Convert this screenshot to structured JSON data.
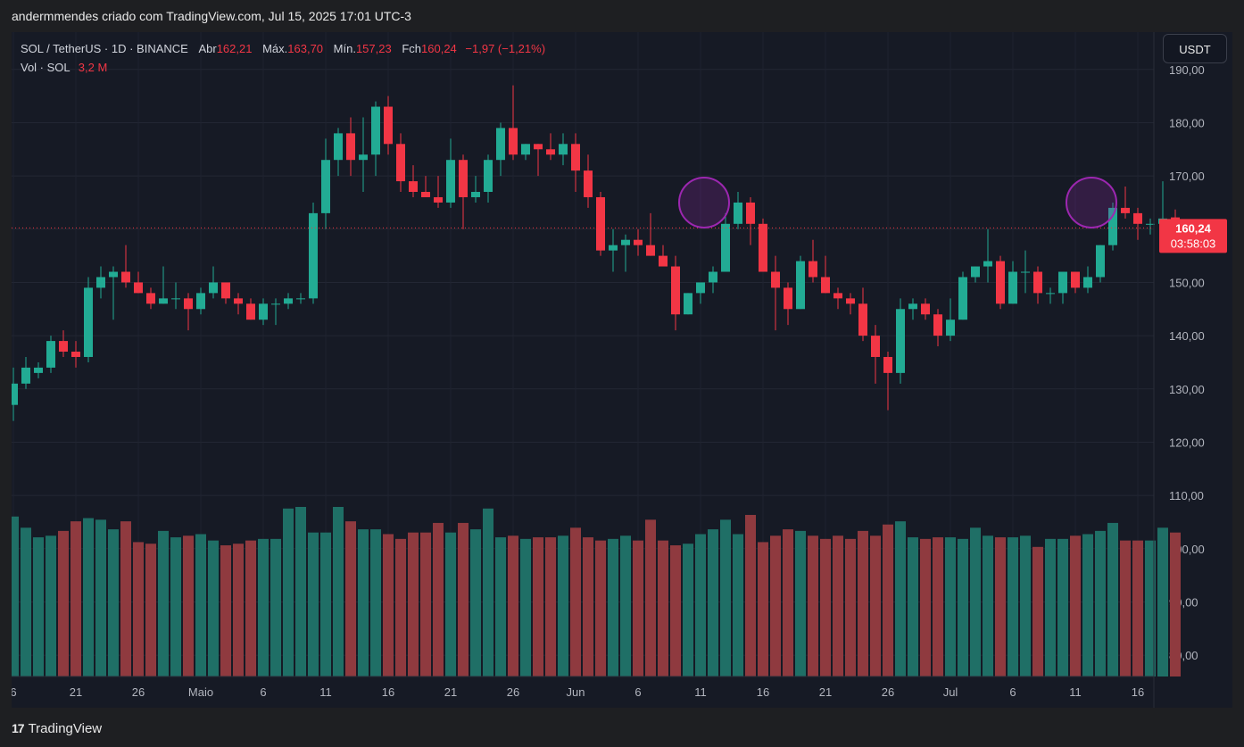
{
  "header": {
    "caption": "andermmendes criado com TradingView.com, Jul 15, 2025 17:01 UTC-3"
  },
  "legend": {
    "symbol": "SOL / TetherUS · 1D · BINANCE",
    "open_label": "Abr",
    "open_value": "162,21",
    "high_label": "Máx.",
    "high_value": "163,70",
    "low_label": "Mín.",
    "low_value": "157,23",
    "close_label": "Fch",
    "close_value": "160,24",
    "change": "−1,97 (−1,21%)",
    "volume_label": "Vol · SOL",
    "volume_value": "3,2 M"
  },
  "currency_button": "USDT",
  "price_tag": {
    "price": "160,24",
    "countdown": "03:58:03"
  },
  "footer": {
    "brand": "TradingView",
    "logo_glyph": "17"
  },
  "colors": {
    "up": "#22ab94",
    "down": "#f23645",
    "volume_up": "#1f6f66",
    "volume_down": "#8f3a3f",
    "background": "#161a25",
    "highlight": "#9c27b0"
  },
  "chart_data": {
    "type": "candlestick",
    "title": "SOL / TetherUS · 1D · BINANCE",
    "y_ticks": [
      "190,00",
      "180,00",
      "170,00",
      "160,00",
      "150,00",
      "140,00",
      "130,00",
      "120,00",
      "110,00",
      "100,00",
      "90,00",
      "80,00"
    ],
    "ylim": [
      76,
      197
    ],
    "x_tick_labels": [
      "6",
      "21",
      "26",
      "Maio",
      "6",
      "11",
      "16",
      "21",
      "26",
      "Jun",
      "6",
      "11",
      "16",
      "21",
      "26",
      "Jul",
      "6",
      "11",
      "16"
    ],
    "current_price": 160.24,
    "highlight_circles": [
      {
        "date": "Jun 10",
        "price": 165
      },
      {
        "date": "Jul 11",
        "price": 165
      }
    ],
    "candles": [
      {
        "o": 127,
        "h": 134,
        "l": 124,
        "c": 131
      },
      {
        "o": 131,
        "h": 136,
        "l": 130,
        "c": 134
      },
      {
        "o": 133,
        "h": 135,
        "l": 132,
        "c": 134
      },
      {
        "o": 134,
        "h": 140,
        "l": 133,
        "c": 139
      },
      {
        "o": 139,
        "h": 141,
        "l": 136,
        "c": 137
      },
      {
        "o": 137,
        "h": 139,
        "l": 134,
        "c": 136
      },
      {
        "o": 136,
        "h": 151,
        "l": 135,
        "c": 149
      },
      {
        "o": 149,
        "h": 153,
        "l": 147,
        "c": 151
      },
      {
        "o": 151,
        "h": 153,
        "l": 143,
        "c": 152
      },
      {
        "o": 152,
        "h": 157,
        "l": 149,
        "c": 150
      },
      {
        "o": 150,
        "h": 152,
        "l": 148,
        "c": 148
      },
      {
        "o": 148,
        "h": 149,
        "l": 145,
        "c": 146
      },
      {
        "o": 146,
        "h": 153,
        "l": 146,
        "c": 147
      },
      {
        "o": 147,
        "h": 150,
        "l": 145,
        "c": 147
      },
      {
        "o": 147,
        "h": 148,
        "l": 141,
        "c": 145
      },
      {
        "o": 145,
        "h": 149,
        "l": 144,
        "c": 148
      },
      {
        "o": 148,
        "h": 153,
        "l": 147,
        "c": 150
      },
      {
        "o": 150,
        "h": 150,
        "l": 146,
        "c": 147
      },
      {
        "o": 147,
        "h": 148,
        "l": 144,
        "c": 146
      },
      {
        "o": 146,
        "h": 147,
        "l": 143,
        "c": 143
      },
      {
        "o": 143,
        "h": 147,
        "l": 142,
        "c": 146
      },
      {
        "o": 146,
        "h": 147,
        "l": 142,
        "c": 146
      },
      {
        "o": 146,
        "h": 148,
        "l": 145,
        "c": 147
      },
      {
        "o": 147,
        "h": 148,
        "l": 146,
        "c": 147
      },
      {
        "o": 147,
        "h": 165,
        "l": 146,
        "c": 163
      },
      {
        "o": 163,
        "h": 177,
        "l": 160,
        "c": 173
      },
      {
        "o": 173,
        "h": 179,
        "l": 170,
        "c": 178
      },
      {
        "o": 178,
        "h": 181,
        "l": 170,
        "c": 173
      },
      {
        "o": 173,
        "h": 181,
        "l": 167,
        "c": 174
      },
      {
        "o": 174,
        "h": 184,
        "l": 170,
        "c": 183
      },
      {
        "o": 183,
        "h": 185,
        "l": 174,
        "c": 176
      },
      {
        "o": 176,
        "h": 178,
        "l": 167,
        "c": 169
      },
      {
        "o": 169,
        "h": 172,
        "l": 166,
        "c": 167
      },
      {
        "o": 167,
        "h": 170,
        "l": 166,
        "c": 166
      },
      {
        "o": 166,
        "h": 170,
        "l": 164,
        "c": 165
      },
      {
        "o": 165,
        "h": 177,
        "l": 164,
        "c": 173
      },
      {
        "o": 173,
        "h": 174,
        "l": 160,
        "c": 166
      },
      {
        "o": 166,
        "h": 170,
        "l": 165,
        "c": 167
      },
      {
        "o": 167,
        "h": 174,
        "l": 165,
        "c": 173
      },
      {
        "o": 173,
        "h": 180,
        "l": 170,
        "c": 179
      },
      {
        "o": 179,
        "h": 187,
        "l": 173,
        "c": 174
      },
      {
        "o": 174,
        "h": 176,
        "l": 173,
        "c": 176
      },
      {
        "o": 176,
        "h": 176,
        "l": 170,
        "c": 175
      },
      {
        "o": 175,
        "h": 178,
        "l": 173,
        "c": 174
      },
      {
        "o": 174,
        "h": 178,
        "l": 172,
        "c": 176
      },
      {
        "o": 176,
        "h": 178,
        "l": 167,
        "c": 171
      },
      {
        "o": 171,
        "h": 174,
        "l": 164,
        "c": 166
      },
      {
        "o": 166,
        "h": 167,
        "l": 155,
        "c": 156
      },
      {
        "o": 156,
        "h": 160,
        "l": 152,
        "c": 157
      },
      {
        "o": 157,
        "h": 159,
        "l": 152,
        "c": 158
      },
      {
        "o": 158,
        "h": 160,
        "l": 155,
        "c": 157
      },
      {
        "o": 157,
        "h": 163,
        "l": 155,
        "c": 155
      },
      {
        "o": 155,
        "h": 157,
        "l": 153,
        "c": 153
      },
      {
        "o": 153,
        "h": 155,
        "l": 141,
        "c": 144
      },
      {
        "o": 144,
        "h": 148,
        "l": 144,
        "c": 148
      },
      {
        "o": 148,
        "h": 150,
        "l": 146,
        "c": 150
      },
      {
        "o": 150,
        "h": 153,
        "l": 148,
        "c": 152
      },
      {
        "o": 152,
        "h": 163,
        "l": 152,
        "c": 161
      },
      {
        "o": 161,
        "h": 167,
        "l": 160,
        "c": 165
      },
      {
        "o": 165,
        "h": 166,
        "l": 157,
        "c": 161
      },
      {
        "o": 161,
        "h": 162,
        "l": 152,
        "c": 152
      },
      {
        "o": 152,
        "h": 155,
        "l": 141,
        "c": 149
      },
      {
        "o": 149,
        "h": 150,
        "l": 142,
        "c": 145
      },
      {
        "o": 145,
        "h": 155,
        "l": 145,
        "c": 154
      },
      {
        "o": 154,
        "h": 158,
        "l": 150,
        "c": 151
      },
      {
        "o": 151,
        "h": 155,
        "l": 148,
        "c": 148
      },
      {
        "o": 148,
        "h": 149,
        "l": 145,
        "c": 147
      },
      {
        "o": 147,
        "h": 148,
        "l": 144,
        "c": 146
      },
      {
        "o": 146,
        "h": 149,
        "l": 139,
        "c": 140
      },
      {
        "o": 140,
        "h": 142,
        "l": 131,
        "c": 136
      },
      {
        "o": 136,
        "h": 137,
        "l": 126,
        "c": 133
      },
      {
        "o": 133,
        "h": 147,
        "l": 131,
        "c": 145
      },
      {
        "o": 145,
        "h": 147,
        "l": 143,
        "c": 146
      },
      {
        "o": 146,
        "h": 147,
        "l": 143,
        "c": 144
      },
      {
        "o": 144,
        "h": 145,
        "l": 138,
        "c": 140
      },
      {
        "o": 140,
        "h": 147,
        "l": 139,
        "c": 143
      },
      {
        "o": 143,
        "h": 152,
        "l": 143,
        "c": 151
      },
      {
        "o": 151,
        "h": 153,
        "l": 150,
        "c": 153
      },
      {
        "o": 153,
        "h": 160,
        "l": 150,
        "c": 154
      },
      {
        "o": 154,
        "h": 155,
        "l": 145,
        "c": 146
      },
      {
        "o": 146,
        "h": 154,
        "l": 146,
        "c": 152
      },
      {
        "o": 152,
        "h": 156,
        "l": 148,
        "c": 152
      },
      {
        "o": 152,
        "h": 153,
        "l": 146,
        "c": 148
      },
      {
        "o": 148,
        "h": 149,
        "l": 146,
        "c": 148
      },
      {
        "o": 148,
        "h": 152,
        "l": 146,
        "c": 152
      },
      {
        "o": 152,
        "h": 152,
        "l": 148,
        "c": 149
      },
      {
        "o": 149,
        "h": 153,
        "l": 148,
        "c": 151
      },
      {
        "o": 151,
        "h": 157,
        "l": 150,
        "c": 157
      },
      {
        "o": 157,
        "h": 165,
        "l": 156,
        "c": 164
      },
      {
        "o": 164,
        "h": 168,
        "l": 162,
        "c": 163
      },
      {
        "o": 163,
        "h": 164,
        "l": 158,
        "c": 161
      },
      {
        "o": 161,
        "h": 162,
        "l": 159,
        "c": 161
      },
      {
        "o": 161,
        "h": 169,
        "l": 160,
        "c": 162
      },
      {
        "o": 162.21,
        "h": 163.7,
        "l": 157.23,
        "c": 160.24
      }
    ],
    "volumes": [
      100,
      93,
      87,
      88,
      91,
      97,
      99,
      98,
      92,
      97,
      84,
      83,
      91,
      87,
      88,
      89,
      85,
      82,
      83,
      85,
      86,
      86,
      105,
      106,
      90,
      90,
      106,
      97,
      92,
      92,
      89,
      86,
      90,
      90,
      96,
      90,
      96,
      92,
      105,
      87,
      88,
      86,
      87,
      87,
      88,
      93,
      87,
      85,
      86,
      88,
      85,
      98,
      85,
      82,
      83,
      89,
      92,
      98,
      89,
      101,
      84,
      88,
      92,
      91,
      88,
      86,
      88,
      86,
      91,
      88,
      95,
      97,
      87,
      86,
      87,
      87,
      86,
      93,
      88,
      87,
      87,
      88,
      81,
      86,
      86,
      88,
      89,
      91,
      96,
      85,
      85,
      85,
      93,
      90
    ]
  }
}
